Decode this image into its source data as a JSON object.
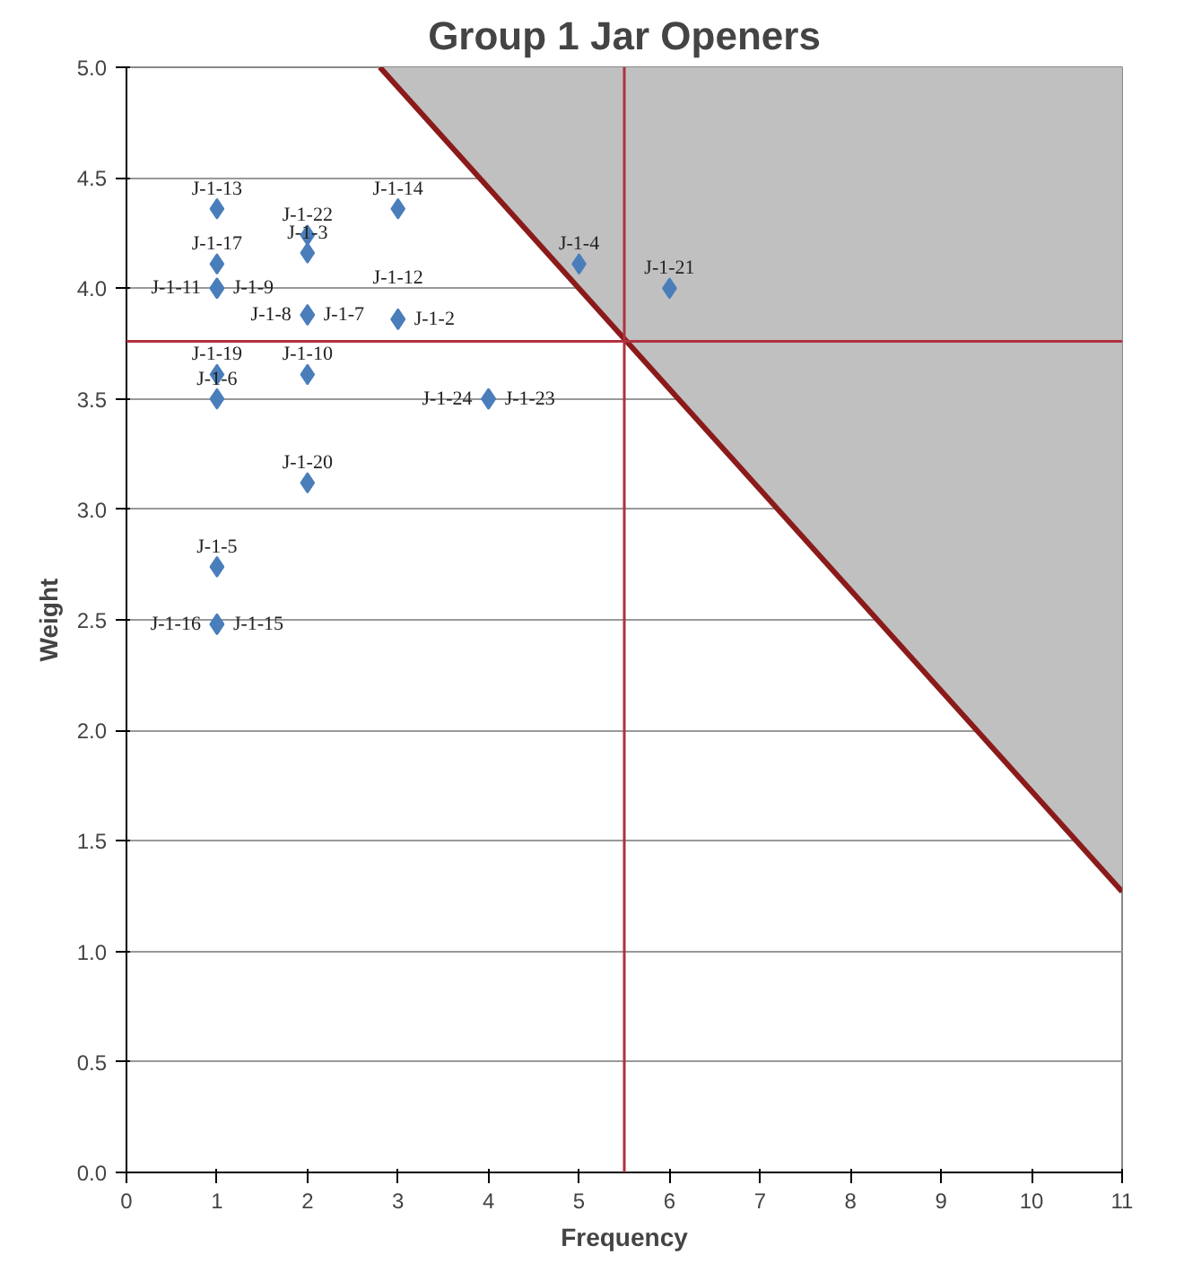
{
  "chart_data": {
    "type": "scatter",
    "title": "Group 1 Jar Openers",
    "xlabel": "Frequency",
    "ylabel": "Weight",
    "xlim": [
      0,
      11
    ],
    "ylim": [
      0,
      5
    ],
    "xticks": [
      0,
      1,
      2,
      3,
      4,
      5,
      6,
      7,
      8,
      9,
      10,
      11
    ],
    "yticks": [
      {
        "value": 0,
        "label": "0.0"
      },
      {
        "value": 0.5,
        "label": "0.5"
      },
      {
        "value": 1,
        "label": "1.0"
      },
      {
        "value": 1.5,
        "label": "1.5"
      },
      {
        "value": 2,
        "label": "2.0"
      },
      {
        "value": 2.5,
        "label": "2.5"
      },
      {
        "value": 3,
        "label": "3.0"
      },
      {
        "value": 3.5,
        "label": "3.5"
      },
      {
        "value": 4,
        "label": "4.0"
      },
      {
        "value": 4.5,
        "label": "4.5"
      },
      {
        "value": 5,
        "label": "5.0"
      }
    ],
    "grid": "y",
    "series": [
      {
        "marker": "diamond",
        "color": "#4a7ebb",
        "x": [
          1,
          1,
          1,
          1,
          1,
          1,
          1,
          1,
          1,
          2,
          2,
          2,
          2,
          2,
          2,
          3,
          3,
          3,
          4,
          4,
          5,
          6
        ],
        "values": [
          4.36,
          4.11,
          4.0,
          4.0,
          3.61,
          3.5,
          2.74,
          2.48,
          2.48,
          4.24,
          4.16,
          3.88,
          3.88,
          3.61,
          3.12,
          4.36,
          3.86,
          3.86,
          3.5,
          3.5,
          4.11,
          4.0
        ],
        "value_labels": [
          "J-1-13",
          "J-1-17",
          "J-1-9",
          "J-1-11",
          "J-1-19",
          "J-1-6",
          "J-1-5",
          "J-1-15",
          "J-1-16",
          "J-1-22",
          "J-1-3",
          "J-1-7",
          "J-1-8",
          "J-1-10",
          "J-1-20",
          "J-1-14",
          "J-1-2",
          "J-1-12",
          "J-1-23",
          "J-1-24",
          "J-1-4",
          "J-1-21"
        ]
      },
      {
        "type": "line",
        "color": "#8b1a1a",
        "x": [
          2.8,
          11
        ],
        "values": [
          5.0,
          1.27
        ],
        "lower": [
          5.0,
          1.27
        ],
        "upper": [
          5.0,
          5.0
        ]
      }
    ],
    "ref_lines": [
      {
        "axis": "x",
        "value": 5.5,
        "color": "#b03040"
      },
      {
        "axis": "y",
        "value": 3.76,
        "color": "#b03040"
      }
    ]
  }
}
